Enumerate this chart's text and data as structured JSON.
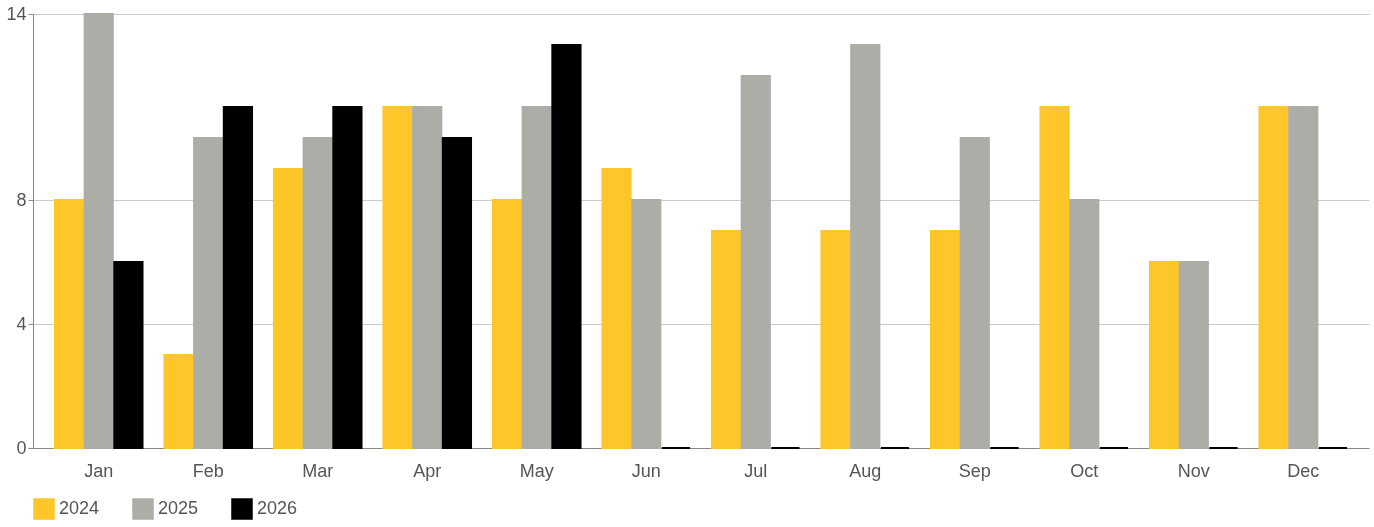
{
  "chart_data": {
    "type": "bar",
    "categories": [
      "Jan",
      "Feb",
      "Mar",
      "Apr",
      "May",
      "Jun",
      "Jul",
      "Aug",
      "Sep",
      "Oct",
      "Nov",
      "Dec"
    ],
    "series": [
      {
        "name": "2024",
        "color": "#ffc629",
        "values": [
          8,
          3,
          9,
          11,
          8,
          9,
          7,
          7,
          7,
          11,
          6,
          11
        ]
      },
      {
        "name": "2025",
        "color": "#adada8",
        "values": [
          14,
          10,
          10,
          11,
          11,
          8,
          12,
          13,
          10,
          8,
          6,
          11
        ]
      },
      {
        "name": "2026",
        "color": "#000000",
        "values": [
          6,
          11,
          11,
          10,
          13,
          0,
          0,
          0,
          0,
          0,
          0,
          0
        ]
      }
    ],
    "ylim": [
      0,
      14
    ],
    "yticks": [
      0,
      4,
      8,
      14
    ],
    "grid": "y",
    "legend": "bottom"
  }
}
